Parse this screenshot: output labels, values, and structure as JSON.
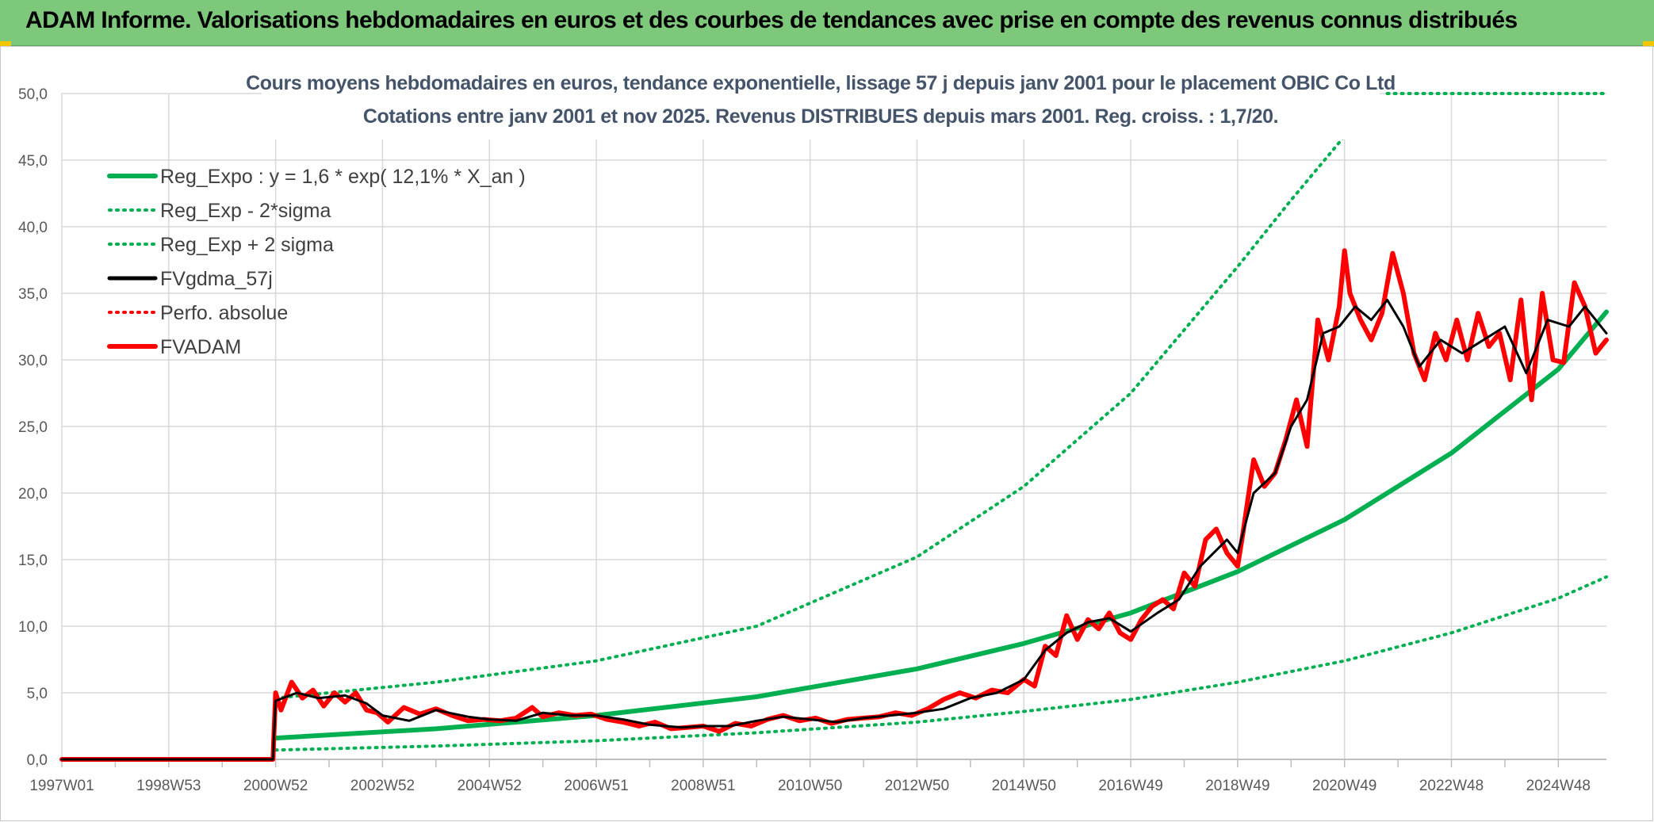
{
  "header": {
    "title": "ADAM Informe. Valorisations hebdomadaires en euros et des courbes de tendances avec prise en compte des revenus connus distribués",
    "background": "#7dc87b"
  },
  "chart_data": {
    "type": "line",
    "title": "Cours moyens hebdomadaires en euros, tendance exponentielle, lissage 57 j depuis janv 2001 pour le placement OBIC Co Ltd",
    "subtitle": "Cotations entre janv 2001 et nov 2025. Revenus DISTRIBUES depuis mars 2001. Reg. croiss. : 1,7/20.",
    "xlabel": "",
    "ylabel": "",
    "ylim": [
      0,
      50
    ],
    "x_range": [
      1997.0,
      2025.9
    ],
    "y_ticks": [
      "0,0",
      "5,0",
      "10,0",
      "15,0",
      "20,0",
      "25,0",
      "30,0",
      "35,0",
      "40,0",
      "45,0",
      "50,0"
    ],
    "x_ticks": [
      {
        "label": "1997W01",
        "x": 1997.0
      },
      {
        "label": "1998W53",
        "x": 1999.0
      },
      {
        "label": "2000W52",
        "x": 2001.0
      },
      {
        "label": "2002W52",
        "x": 2003.0
      },
      {
        "label": "2004W52",
        "x": 2005.0
      },
      {
        "label": "2006W51",
        "x": 2007.0
      },
      {
        "label": "2008W51",
        "x": 2009.0
      },
      {
        "label": "2010W50",
        "x": 2011.0
      },
      {
        "label": "2012W50",
        "x": 2013.0
      },
      {
        "label": "2014W50",
        "x": 2015.0
      },
      {
        "label": "2016W49",
        "x": 2017.0
      },
      {
        "label": "2018W49",
        "x": 2019.0
      },
      {
        "label": "2020W49",
        "x": 2021.0
      },
      {
        "label": "2022W48",
        "x": 2023.0
      },
      {
        "label": "2024W48",
        "x": 2025.0
      }
    ],
    "grid": true,
    "legend_position": "top-left",
    "series": [
      {
        "name": "Reg_Expo : y = 1,6 * exp( 12,1% *  X_an )",
        "color": "#00b050",
        "style": "solid-thick",
        "x": [
          2001.0,
          2004.0,
          2007.0,
          2010.0,
          2013.0,
          2015.0,
          2017.0,
          2019.0,
          2021.0,
          2023.0,
          2025.0,
          2025.9
        ],
        "y": [
          1.6,
          2.3,
          3.3,
          4.7,
          6.8,
          8.7,
          11.0,
          14.1,
          18.0,
          23.0,
          29.3,
          33.6
        ]
      },
      {
        "name": "Reg_Exp - 2*sigma",
        "color": "#00b050",
        "style": "dotted",
        "x": [
          2001.0,
          2004.0,
          2007.0,
          2010.0,
          2013.0,
          2015.0,
          2017.0,
          2019.0,
          2021.0,
          2023.0,
          2025.0,
          2025.9
        ],
        "y": [
          0.7,
          1.0,
          1.4,
          2.0,
          2.8,
          3.6,
          4.5,
          5.8,
          7.4,
          9.5,
          12.1,
          13.7
        ]
      },
      {
        "name": "Reg_Exp + 2 sigma",
        "color": "#00b050",
        "style": "dotted",
        "x": [
          2001.0,
          2004.0,
          2007.0,
          2010.0,
          2013.0,
          2015.0,
          2017.0,
          2019.0,
          2020.0,
          2021.0
        ],
        "y": [
          4.6,
          5.8,
          7.4,
          10.0,
          15.2,
          20.5,
          27.5,
          37.0,
          42.0,
          46.8
        ]
      },
      {
        "name": "FVgdma_57j",
        "color": "#000000",
        "style": "solid",
        "x": [
          1997.0,
          2000.95,
          2001.0,
          2001.4,
          2001.8,
          2002.3,
          2002.7,
          2003.0,
          2003.5,
          2004.0,
          2004.6,
          2005.0,
          2005.5,
          2006.0,
          2006.5,
          2007.0,
          2007.5,
          2008.0,
          2008.6,
          2009.0,
          2009.5,
          2010.0,
          2010.5,
          2011.0,
          2011.5,
          2012.0,
          2012.5,
          2013.0,
          2013.5,
          2014.0,
          2014.5,
          2015.0,
          2015.4,
          2015.8,
          2016.2,
          2016.6,
          2017.0,
          2017.5,
          2017.9,
          2018.3,
          2018.8,
          2019.0,
          2019.3,
          2019.7,
          2020.0,
          2020.3,
          2020.6,
          2020.9,
          2021.2,
          2021.5,
          2021.8,
          2022.1,
          2022.4,
          2022.8,
          2023.2,
          2023.6,
          2024.0,
          2024.4,
          2024.8,
          2025.2,
          2025.5,
          2025.9
        ],
        "y": [
          0.0,
          0.0,
          4.4,
          5.0,
          4.6,
          4.8,
          4.2,
          3.3,
          2.9,
          3.7,
          3.2,
          3.0,
          2.9,
          3.5,
          3.3,
          3.3,
          3.0,
          2.6,
          2.4,
          2.5,
          2.5,
          2.9,
          3.2,
          3.0,
          2.8,
          3.1,
          3.3,
          3.5,
          3.8,
          4.6,
          5.0,
          6.0,
          8.2,
          9.5,
          10.3,
          10.6,
          9.6,
          11.0,
          12.0,
          14.5,
          16.5,
          15.5,
          20.0,
          21.5,
          25.0,
          27.0,
          32.0,
          32.5,
          34.0,
          33.0,
          34.5,
          32.5,
          29.5,
          31.5,
          30.5,
          31.5,
          32.5,
          29.0,
          33.0,
          32.5,
          34.0,
          32.0
        ]
      },
      {
        "name": "Perfo. absolue",
        "color": "#ff0000",
        "style": "dotted",
        "x": [],
        "y": []
      },
      {
        "name": "FVADAM",
        "color": "#ff0000",
        "style": "solid-thick",
        "x": [
          1997.0,
          2000.95,
          2001.0,
          2001.1,
          2001.3,
          2001.5,
          2001.7,
          2001.9,
          2002.1,
          2002.3,
          2002.5,
          2002.7,
          2002.9,
          2003.1,
          2003.4,
          2003.7,
          2004.0,
          2004.3,
          2004.6,
          2004.9,
          2005.2,
          2005.5,
          2005.8,
          2006.0,
          2006.3,
          2006.6,
          2006.9,
          2007.2,
          2007.5,
          2007.8,
          2008.1,
          2008.4,
          2008.7,
          2009.0,
          2009.3,
          2009.6,
          2009.9,
          2010.2,
          2010.5,
          2010.8,
          2011.1,
          2011.4,
          2011.7,
          2012.0,
          2012.3,
          2012.6,
          2012.9,
          2013.2,
          2013.5,
          2013.8,
          2014.1,
          2014.4,
          2014.7,
          2015.0,
          2015.2,
          2015.4,
          2015.6,
          2015.8,
          2016.0,
          2016.2,
          2016.4,
          2016.6,
          2016.8,
          2017.0,
          2017.2,
          2017.4,
          2017.6,
          2017.8,
          2018.0,
          2018.2,
          2018.4,
          2018.6,
          2018.8,
          2019.0,
          2019.1,
          2019.3,
          2019.5,
          2019.7,
          2019.9,
          2020.1,
          2020.3,
          2020.5,
          2020.7,
          2020.9,
          2021.0,
          2021.1,
          2021.3,
          2021.5,
          2021.7,
          2021.9,
          2022.1,
          2022.3,
          2022.5,
          2022.7,
          2022.9,
          2023.1,
          2023.3,
          2023.5,
          2023.7,
          2023.9,
          2024.1,
          2024.3,
          2024.5,
          2024.7,
          2024.9,
          2025.1,
          2025.3,
          2025.5,
          2025.7,
          2025.9
        ],
        "y": [
          0.0,
          0.0,
          5.0,
          3.7,
          5.8,
          4.6,
          5.2,
          4.0,
          5.0,
          4.3,
          5.0,
          3.7,
          3.5,
          2.8,
          3.9,
          3.4,
          3.8,
          3.3,
          2.9,
          3.0,
          2.9,
          3.1,
          3.9,
          3.2,
          3.5,
          3.3,
          3.4,
          3.0,
          2.8,
          2.5,
          2.8,
          2.3,
          2.4,
          2.5,
          2.1,
          2.7,
          2.5,
          3.0,
          3.3,
          2.9,
          3.1,
          2.7,
          3.0,
          3.1,
          3.2,
          3.5,
          3.3,
          3.8,
          4.5,
          5.0,
          4.6,
          5.2,
          5.0,
          6.0,
          5.5,
          8.5,
          7.8,
          10.8,
          9.0,
          10.5,
          9.8,
          11.0,
          9.5,
          9.0,
          10.5,
          11.5,
          12.0,
          11.3,
          14.0,
          13.0,
          16.5,
          17.3,
          15.5,
          14.5,
          17.0,
          22.5,
          20.5,
          21.5,
          24.0,
          27.0,
          23.5,
          33.0,
          30.0,
          34.0,
          38.2,
          35.0,
          33.0,
          31.5,
          33.5,
          38.0,
          35.0,
          30.5,
          28.5,
          32.0,
          30.0,
          33.0,
          30.0,
          33.5,
          31.0,
          32.0,
          28.5,
          34.5,
          27.0,
          35.0,
          30.0,
          29.8,
          35.8,
          34.0,
          30.5,
          31.5
        ]
      }
    ]
  }
}
